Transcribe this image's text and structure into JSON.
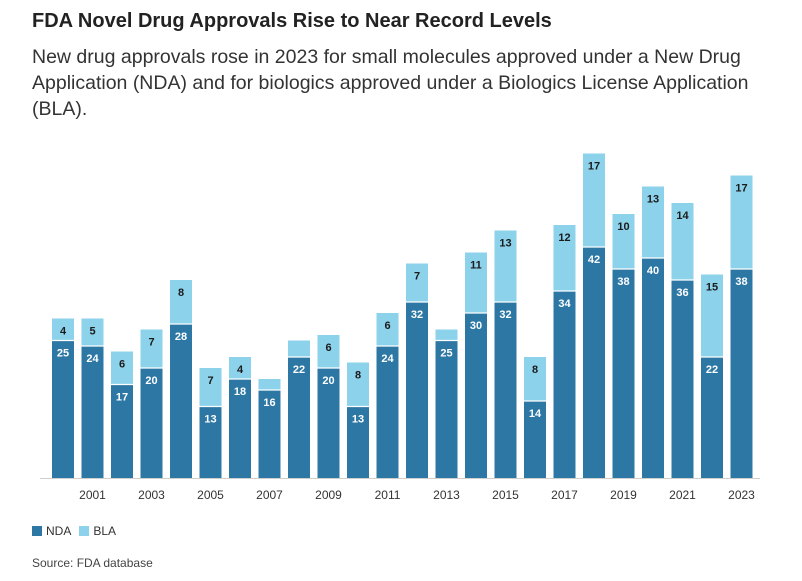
{
  "title": "FDA Novel Drug Approvals Rise to Near Record Levels",
  "subtitle": "New drug approvals rose in 2023 for small molecules approved under a New Drug Application (NDA) and for biologics approved under a Biologics License Application (BLA).",
  "source": "Source: FDA database",
  "colors": {
    "nda": "#2d77a5",
    "bla": "#8dd2eb"
  },
  "legend": [
    {
      "label": "NDA",
      "key": "nda"
    },
    {
      "label": "BLA",
      "key": "bla"
    }
  ],
  "chart_data": {
    "type": "bar",
    "stacked": true,
    "categories": [
      "2000",
      "2001",
      "2002",
      "2003",
      "2004",
      "2005",
      "2006",
      "2007",
      "2008",
      "2009",
      "2010",
      "2011",
      "2012",
      "2013",
      "2014",
      "2015",
      "2016",
      "2017",
      "2018",
      "2019",
      "2020",
      "2021",
      "2022",
      "2023"
    ],
    "tick_labels": [
      "2001",
      "2003",
      "2005",
      "2007",
      "2009",
      "2011",
      "2013",
      "2015",
      "2017",
      "2019",
      "2021",
      "2023"
    ],
    "series": [
      {
        "name": "NDA",
        "values": [
          25,
          24,
          17,
          20,
          28,
          13,
          18,
          16,
          22,
          20,
          13,
          24,
          32,
          25,
          30,
          32,
          14,
          34,
          42,
          38,
          40,
          36,
          22,
          38
        ],
        "labels": [
          "25",
          "24",
          "17",
          "20",
          "28",
          "13",
          "18",
          "16",
          "22",
          "20",
          "13",
          "24",
          "32",
          "25",
          "30",
          "32",
          "14",
          "34",
          "42",
          "38",
          "40",
          "36",
          "22",
          "38"
        ]
      },
      {
        "name": "BLA",
        "values": [
          4,
          5,
          6,
          7,
          8,
          7,
          4,
          2,
          3,
          6,
          8,
          6,
          7,
          2,
          11,
          13,
          8,
          12,
          17,
          10,
          13,
          14,
          15,
          17
        ],
        "labels": [
          "4",
          "5",
          "6",
          "7",
          "8",
          "7",
          "4",
          "",
          "",
          "6",
          "8",
          "6",
          "7",
          "",
          "11",
          "13",
          "8",
          "12",
          "17",
          "10",
          "13",
          "14",
          "15",
          "17"
        ]
      }
    ],
    "ylim": [
      0,
      60
    ],
    "xlabel": "",
    "ylabel": "",
    "legend_position": "bottom-left"
  }
}
